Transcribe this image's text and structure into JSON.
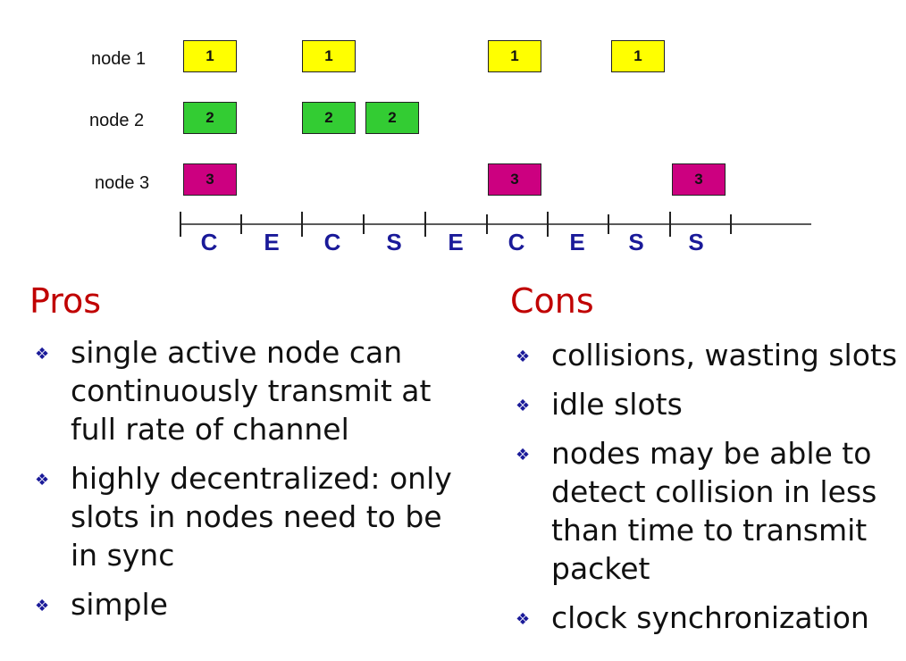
{
  "colors": {
    "node1_fill": "#ffff00",
    "node2_fill": "#33cc33",
    "node3_fill": "#cc0080",
    "slot_label": "#1a1a99",
    "heading": "#c00000",
    "bullet": "#1a1a99"
  },
  "nodes": [
    {
      "label": "node 1",
      "box_text": "1",
      "slots": [
        1,
        3,
        6,
        8
      ]
    },
    {
      "label": "node 2",
      "box_text": "2",
      "slots": [
        1,
        3,
        4
      ]
    },
    {
      "label": "node 3",
      "box_text": "3",
      "slots": [
        1,
        6,
        9
      ]
    }
  ],
  "slot_labels": [
    "C",
    "E",
    "C",
    "S",
    "E",
    "C",
    "E",
    "S",
    "S"
  ],
  "pros": {
    "title": "Pros",
    "items": [
      "single active node can continuously transmit at full rate of channel",
      "highly decentralized: only slots in nodes need to be in sync",
      "simple"
    ]
  },
  "cons": {
    "title": "Cons",
    "items": [
      "collisions, wasting slots",
      "idle slots",
      "nodes may be able to detect collision in less than time to transmit packet",
      "clock synchronization"
    ]
  },
  "bullet_icon": "diamond-bullet-icon"
}
